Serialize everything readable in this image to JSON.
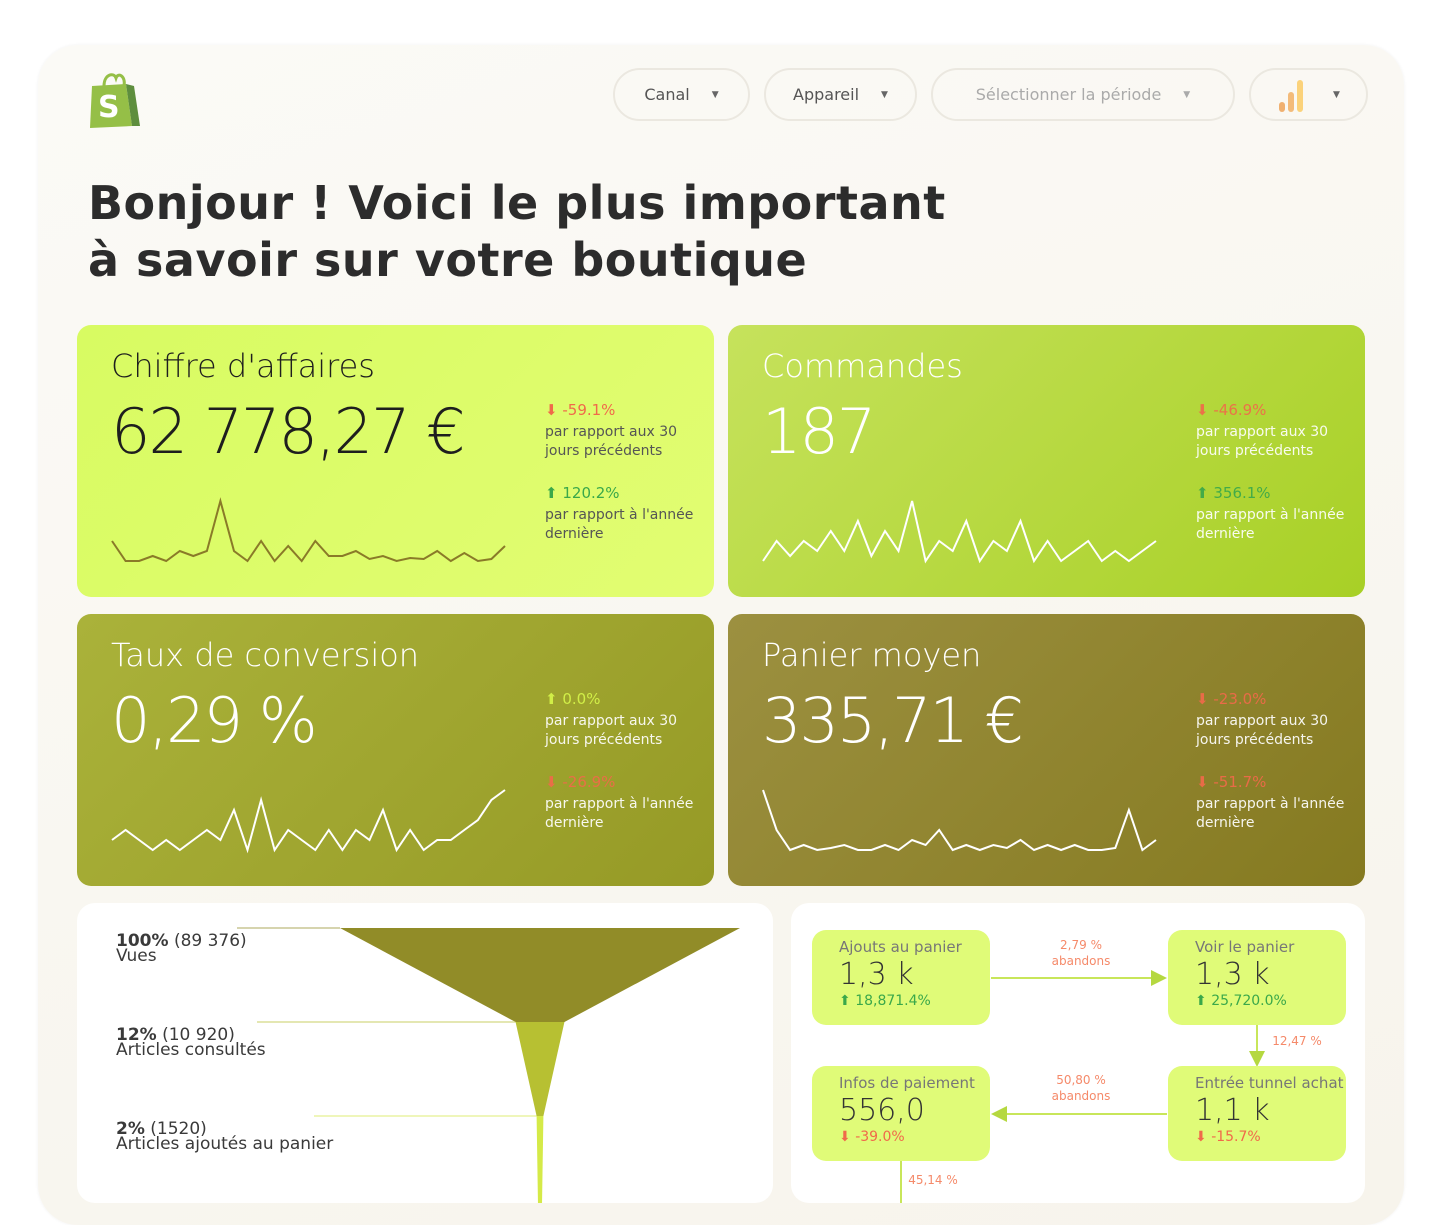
{
  "header": {
    "logo": "shopify-bag-logo",
    "filters": [
      {
        "label": "Canal"
      },
      {
        "label": "Appareil"
      },
      {
        "label": "Sélectionner la période"
      }
    ],
    "chart_menu_icon": "bar-chart-icon"
  },
  "title": {
    "line1": "Bonjour ! Voici le plus important",
    "line2": "à savoir sur votre boutique"
  },
  "kpis": [
    {
      "title": "Chiffre d'affaires",
      "value": "62 778,27 €",
      "mom": {
        "pct": "-59.1%",
        "dir": "down",
        "label": "par rapport aux 30 jours précédents"
      },
      "yoy": {
        "pct": "120.2%",
        "dir": "up",
        "label": "par rapport à l'année dernière"
      },
      "spark": [
        3,
        1,
        1,
        1.5,
        1,
        2,
        1.5,
        2,
        7,
        2,
        1,
        3,
        1,
        2.5,
        1,
        3,
        1.5,
        1.5,
        2,
        1.2,
        1.5,
        1,
        1.3,
        1.2,
        2,
        1,
        1.8,
        1,
        1.2,
        2.5
      ],
      "bg": "#ddfd66",
      "text": "#1e1e1e",
      "sparkColor": "#8a7a28"
    },
    {
      "title": "Commandes",
      "value": "187",
      "mom": {
        "pct": "-46.9%",
        "dir": "down",
        "label": "par rapport aux 30 jours précédents"
      },
      "yoy": {
        "pct": "356.1%",
        "dir": "up",
        "label": "par rapport à l'année dernière"
      },
      "spark": [
        1,
        3,
        1.5,
        3,
        2,
        4,
        2,
        5,
        1.5,
        4,
        2,
        7,
        1,
        3,
        2,
        5,
        1,
        3,
        2,
        5,
        1,
        3,
        1,
        2,
        3,
        1,
        2,
        1,
        2,
        3
      ],
      "bg": "#bfe04a",
      "text": "#ffffff",
      "sparkColor": "#ffffff"
    },
    {
      "title": "Taux de conversion",
      "value": "0,29 %",
      "mom": {
        "pct": "0.0%",
        "dir": "up",
        "label": "par rapport aux 30 jours précédents"
      },
      "yoy": {
        "pct": "-26.9%",
        "dir": "down",
        "label": "par rapport à l'année dernière"
      },
      "spark": [
        2,
        3,
        2,
        1,
        2,
        1,
        2,
        3,
        2,
        5,
        1,
        6,
        1,
        3,
        2,
        1,
        3,
        1,
        3,
        2,
        5,
        1,
        3,
        1,
        2,
        2,
        3,
        4,
        6,
        7
      ],
      "bg": "#a4a632",
      "text": "#ffffff",
      "sparkColor": "#ffffff"
    },
    {
      "title": "Panier moyen",
      "value": "335,71 €",
      "mom": {
        "pct": "-23.0%",
        "dir": "down",
        "label": "par rapport aux 30 jours précédents"
      },
      "yoy": {
        "pct": "-51.7%",
        "dir": "down",
        "label": "par rapport à l'année dernière"
      },
      "spark": [
        7,
        3,
        1,
        1.5,
        1,
        1.2,
        1.5,
        1,
        1,
        1.5,
        1,
        2,
        1.5,
        3,
        1,
        1.5,
        1,
        1.5,
        1.2,
        2,
        1,
        1.5,
        1,
        1.5,
        1,
        1,
        1.2,
        5,
        1,
        2
      ],
      "bg": "#8f8430",
      "text": "#ffffff",
      "sparkColor": "#ffffff"
    }
  ],
  "funnel": {
    "stages": [
      {
        "pct": "100%",
        "count": "(89 376)",
        "label": "Vues",
        "value": 89376,
        "color": "#918c28"
      },
      {
        "pct": "12%",
        "count": "(10 920)",
        "label": "Articles consultés",
        "value": 10920,
        "color": "#b7c032"
      },
      {
        "pct": "2%",
        "count": "(1520)",
        "label": "Articles ajoutés au panier",
        "value": 1520,
        "color": "#d5ea48"
      }
    ]
  },
  "flow": {
    "boxes": [
      {
        "label": "Ajouts au panier",
        "value": "1,3 k",
        "pct": "18,871.4%",
        "dir": "up"
      },
      {
        "label": "Voir le panier",
        "value": "1,3 k",
        "pct": "25,720.0%",
        "dir": "up"
      },
      {
        "label": "Entrée tunnel achat",
        "value": "1,1 k",
        "pct": "-15.7%",
        "dir": "down"
      },
      {
        "label": "Infos de paiement",
        "value": "556,0",
        "pct": "-39.0%",
        "dir": "down"
      }
    ],
    "arrows": [
      {
        "pct": "2,79 %",
        "note": "abandons"
      },
      {
        "pct": "12,47 %"
      },
      {
        "pct": "50,80 %",
        "note": "abandons"
      },
      {
        "pct": "45,14 %"
      }
    ],
    "up_color": "#3aa84a",
    "down_color": "#f06a4a"
  }
}
